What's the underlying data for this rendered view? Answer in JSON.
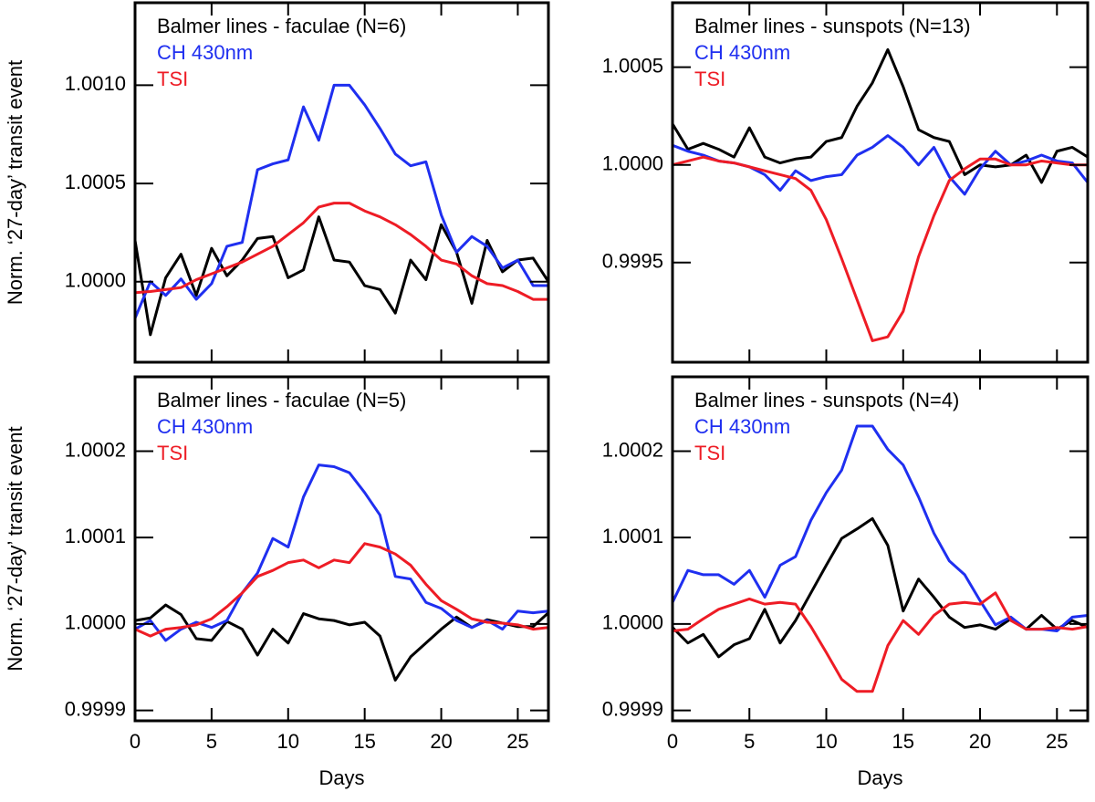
{
  "chart_data": [
    {
      "type": "line",
      "legend": "upper left",
      "ylabel": "Norm. ‘27-day’ transit event",
      "x": [
        0,
        1,
        2,
        3,
        4,
        5,
        6,
        7,
        8,
        9,
        10,
        11,
        12,
        13,
        14,
        15,
        16,
        17,
        18,
        19,
        20,
        21,
        22,
        23,
        24,
        25,
        26,
        27
      ],
      "xlim": [
        0,
        27
      ],
      "xticks": [
        0,
        5,
        10,
        15,
        20,
        25
      ],
      "ylim": [
        0.99959,
        1.00142
      ],
      "yticks": [
        {
          "value": 1,
          "label": "1.0000"
        },
        {
          "value": 1.0005,
          "label": "1.0005"
        },
        {
          "value": 1.001,
          "label": "1.0010"
        }
      ],
      "series": [
        {
          "name": "Balmer lines - faculae (N=6)",
          "color": "#000000",
          "values": [
            1.00021,
            0.99973,
            1.00002,
            1.00014,
            0.99993,
            1.00017,
            1.00003,
            1.00011,
            1.00022,
            1.00023,
            1.00002,
            1.00006,
            1.00033,
            1.00011,
            1.0001,
            0.99998,
            0.99996,
            0.99984,
            1.00011,
            1.00001,
            1.00029,
            1.00015,
            0.99989,
            1.00021,
            1.00005,
            1.00011,
            1.00012,
            1
          ]
        },
        {
          "name": "CH 430nm",
          "color": "#1f2ff0",
          "values": [
            0.999814,
            1,
            0.99993,
            1.000014,
            0.99991,
            0.99999,
            1.00018,
            1.0002,
            1.00057,
            1.0006,
            1.00062,
            1.00089,
            1.00072,
            1.001,
            1.001,
            1.0009,
            1.00078,
            1.00065,
            1.00059,
            1.00061,
            1.00034,
            1.00015,
            1.00023,
            1.00018,
            1.00007,
            1.00011,
            0.99998,
            0.99998
          ]
        },
        {
          "name": "TSI",
          "color": "#ee1c25",
          "values": [
            0.999944,
            0.99995,
            0.99996,
            0.99997,
            1.00001,
            1.00004,
            1.00007,
            1.0001,
            1.00014,
            1.00018,
            1.00024,
            1.0003,
            1.00038,
            1.0004,
            1.0004,
            1.00036,
            1.00033,
            1.00029,
            1.00024,
            1.00018,
            1.00011,
            1.00009,
            1.00003,
            0.99999,
            0.99998,
            0.99995,
            0.99991,
            0.99991
          ]
        }
      ]
    },
    {
      "type": "line",
      "legend": "upper left",
      "x": [
        0,
        1,
        2,
        3,
        4,
        5,
        6,
        7,
        8,
        9,
        10,
        11,
        12,
        13,
        14,
        15,
        16,
        17,
        18,
        19,
        20,
        21,
        22,
        23,
        24,
        25,
        26,
        27
      ],
      "xlim": [
        0,
        27
      ],
      "xticks": [
        0,
        5,
        10,
        15,
        20,
        25
      ],
      "ylim": [
        0.99899,
        1.00083
      ],
      "yticks": [
        {
          "value": 0.9995,
          "label": "0.9995"
        },
        {
          "value": 1,
          "label": "1.0000"
        },
        {
          "value": 1.0005,
          "label": "1.0005"
        }
      ],
      "series": [
        {
          "name": "Balmer lines - sunspots (N=13)",
          "color": "#000000",
          "values": [
            1.00021,
            1.00008,
            1.00011,
            1.00008,
            1.00004,
            1.00019,
            1.00004,
            1.00001,
            1.00003,
            1.00004,
            1.00012,
            1.00014,
            1.0003,
            1.00042,
            1.00059,
            1.0004,
            1.00018,
            1.00014,
            1.00012,
            0.99995,
            1,
            0.99999,
            1,
            1.00005,
            0.99991,
            1.00007,
            1.00009,
            1.00004
          ]
        },
        {
          "name": "CH 430nm",
          "color": "#1f2ff0",
          "values": [
            1.0001,
            1.00007,
            1.00005,
            1.00002,
            1.00001,
            0.99999,
            0.99995,
            0.99987,
            0.99997,
            0.99992,
            0.99994,
            0.99995,
            1.00005,
            1.00009,
            1.00015,
            1.00009,
            1,
            1.00009,
            0.99994,
            0.99985,
            0.99998,
            1.00007,
            1,
            1.00002,
            1.00005,
            1.00002,
            1.00001,
            0.99991
          ]
        },
        {
          "name": "TSI",
          "color": "#ee1c25",
          "values": [
            1,
            1.00002,
            1.00004,
            1.00002,
            1.00001,
            0.99999,
            0.99997,
            0.99995,
            0.99993,
            0.99987,
            0.99972,
            0.99952,
            0.99931,
            0.9991,
            0.99912,
            0.99925,
            0.99953,
            0.99974,
            0.99992,
            0.99998,
            1.00003,
            1.00003,
            1,
            1,
            1.00002,
            1.00001,
            1,
            1
          ]
        }
      ]
    },
    {
      "type": "line",
      "legend": "upper left",
      "ylabel": "Norm. ‘27-day’ transit event",
      "xlabel": "Days",
      "x": [
        0,
        1,
        2,
        3,
        4,
        5,
        6,
        7,
        8,
        9,
        10,
        11,
        12,
        13,
        14,
        15,
        16,
        17,
        18,
        19,
        20,
        21,
        22,
        23,
        24,
        25,
        26,
        27
      ],
      "xlim": [
        0,
        27
      ],
      "xticks": [
        0,
        5,
        10,
        15,
        20,
        25
      ],
      "ylim": [
        0.999888,
        1.000286
      ],
      "yticks": [
        {
          "value": 0.9999,
          "label": "0.9999"
        },
        {
          "value": 1,
          "label": "1.0000"
        },
        {
          "value": 1.0001,
          "label": "1.0001"
        },
        {
          "value": 1.0002,
          "label": "1.0002"
        }
      ],
      "series": [
        {
          "name": "Balmer lines - faculae (N=5)",
          "color": "#000000",
          "values": [
            1.000004,
            1.000007,
            1.000022,
            1.000011,
            0.999983,
            0.999981,
            1.000003,
            0.999994,
            0.999964,
            0.999994,
            0.999978,
            1.000012,
            1.000006,
            1.000004,
            0.999999,
            1.000002,
            0.999986,
            0.999935,
            0.999962,
            0.999978,
            0.999994,
            1.000008,
            0.999996,
            1.000005,
            1.000001,
            0.999997,
            0.999997,
            1.000013
          ]
        },
        {
          "name": "CH 430nm",
          "color": "#1f2ff0",
          "values": [
            0.999994,
            1.000004,
            0.999981,
            0.999994,
            1.000002,
            0.999996,
            1.000004,
            1.000036,
            1.000059,
            1.000099,
            1.000089,
            1.000147,
            1.000184,
            1.000182,
            1.000175,
            1.000152,
            1.000126,
            1.000055,
            1.000052,
            1.000025,
            1.000018,
            1.000004,
            0.999996,
            1.000004,
            0.999994,
            1.000015,
            1.000013,
            1.000015
          ]
        },
        {
          "name": "TSI",
          "color": "#ee1c25",
          "values": [
            0.999994,
            0.999986,
            0.999994,
            0.999996,
            0.999999,
            1.000006,
            1.00002,
            1.000036,
            1.000055,
            1.000062,
            1.000071,
            1.000074,
            1.000065,
            1.000074,
            1.000071,
            1.000093,
            1.000089,
            1.000081,
            1.000068,
            1.000046,
            1.000027,
            1.000017,
            1.000006,
            1.000002,
            1.000001,
            0.999999,
            0.999994,
            0.999996
          ]
        }
      ]
    },
    {
      "type": "line",
      "legend": "upper left",
      "xlabel": "Days",
      "x": [
        0,
        1,
        2,
        3,
        4,
        5,
        6,
        7,
        8,
        9,
        10,
        11,
        12,
        13,
        14,
        15,
        16,
        17,
        18,
        19,
        20,
        21,
        22,
        23,
        24,
        25,
        26,
        27
      ],
      "xlim": [
        0,
        27
      ],
      "xticks": [
        0,
        5,
        10,
        15,
        20,
        25
      ],
      "ylim": [
        0.999888,
        1.000286
      ],
      "yticks": [
        {
          "value": 0.9999,
          "label": "0.9999"
        },
        {
          "value": 1,
          "label": "1.0000"
        },
        {
          "value": 1.0001,
          "label": "1.0001"
        },
        {
          "value": 1.0002,
          "label": "1.0002"
        }
      ],
      "series": [
        {
          "name": "Balmer lines - sunspots (N=4)",
          "color": "#000000",
          "values": [
            0.999996,
            0.999978,
            0.999988,
            0.999962,
            0.999976,
            0.999983,
            1.000017,
            0.999978,
            1.000004,
            1.000036,
            1.000068,
            1.000099,
            1.00011,
            1.000122,
            1.000091,
            1.000015,
            1.000052,
            1.000031,
            1.000008,
            0.999996,
            0.999999,
            0.999994,
            1.000006,
            0.999994,
            1.00001,
            0.999994,
            1.000004,
            0.999996
          ]
        },
        {
          "name": "CH 430nm",
          "color": "#1f2ff0",
          "values": [
            1.000025,
            1.000062,
            1.000057,
            1.000057,
            1.000046,
            1.000062,
            1.000031,
            1.000068,
            1.000078,
            1.00012,
            1.000152,
            1.000178,
            1.000229,
            1.000229,
            1.000202,
            1.000184,
            1.000147,
            1.000105,
            1.000073,
            1.000057,
            1.000027,
            0.999999,
            1.000008,
            0.999994,
            0.999994,
            0.999992,
            1.000008,
            1.00001
          ]
        },
        {
          "name": "TSI",
          "color": "#ee1c25",
          "values": [
            0.999992,
            0.999994,
            1.000006,
            1.000017,
            1.000023,
            1.000029,
            1.000023,
            1.000025,
            1.000023,
            0.999997,
            0.999967,
            0.999936,
            0.999922,
            0.999922,
            0.999975,
            1.000004,
            0.999988,
            1.00001,
            1.000023,
            1.000025,
            1.000023,
            1.000036,
            1.000004,
            0.999994,
            0.999994,
            0.999996,
            0.999994,
            0.999997
          ]
        }
      ]
    }
  ]
}
